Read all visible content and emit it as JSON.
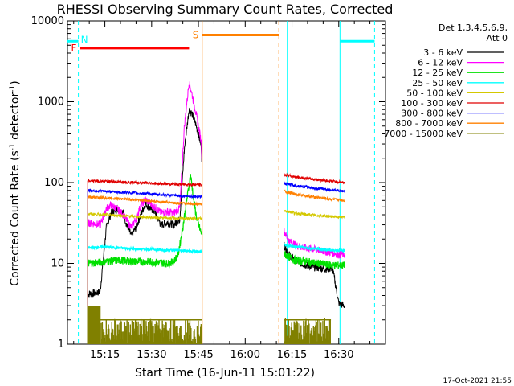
{
  "chart_data": {
    "type": "line",
    "title": "RHESSI Observing Summary Count Rates, Corrected",
    "xlabel": "Start Time (16-Jun-11 15:01:22)",
    "ylabel": "Corrected Count Rate (s⁻¹ detector⁻¹)",
    "ylabel_main": "Corrected Count Rate (s",
    "ylabel_mid": " detector",
    "ylabel_end": ")",
    "ylabel_sup": "-1",
    "y_scale": "log",
    "ylim": [
      1,
      10000
    ],
    "y_ticks": [
      1,
      10,
      100,
      1000,
      10000
    ],
    "y_tick_labels": [
      "1",
      "10",
      "100",
      "1000",
      "10000"
    ],
    "xlim_minutes": [
      15.02,
      16.75
    ],
    "x_ticks_minutes": [
      915,
      930,
      945,
      960,
      975,
      990
    ],
    "x_tick_labels": [
      "15:15",
      "15:30",
      "15:45",
      "16:00",
      "16:15",
      "16:30"
    ],
    "timestamp": "17-Oct-2021 21:55",
    "legend_header": [
      "Det 1,3,4,5,6,9,",
      "Att 0"
    ],
    "legend": [
      {
        "label": "3 - 6 keV",
        "color": "#000000"
      },
      {
        "label": "6 - 12 keV",
        "color": "#ff00ff"
      },
      {
        "label": "12 - 25 keV",
        "color": "#00e000"
      },
      {
        "label": "25 - 50 keV",
        "color": "#00ffff"
      },
      {
        "label": "50 - 100 keV",
        "color": "#d4c800"
      },
      {
        "label": "100 - 300 keV",
        "color": "#e00000"
      },
      {
        "label": "300 - 800 keV",
        "color": "#0000ff"
      },
      {
        "label": "800 - 7000 keV",
        "color": "#ff8000"
      },
      {
        "label": "7000 - 15000 keV",
        "color": "#808000"
      }
    ],
    "flags": [
      {
        "label": "N",
        "color": "#00ffff",
        "note": "night"
      },
      {
        "label": "F",
        "color": "#ff0000",
        "note": "flare"
      },
      {
        "label": "S",
        "color": "#ff8000",
        "note": "SAA"
      }
    ],
    "series": [
      {
        "name": "3 - 6 keV",
        "color": "#000000",
        "x": [
          909.5,
          912,
          913.5,
          915.5,
          917,
          919,
          921,
          922,
          923.5,
          925,
          926.5,
          928,
          929.5,
          931,
          933,
          935,
          937,
          939,
          940.5,
          942,
          943,
          944,
          945,
          945.9,
          946.2,
          972.5,
          974,
          976,
          978,
          980,
          982,
          984,
          986,
          988,
          990,
          992
        ],
        "y": [
          4.2,
          4.3,
          4.5,
          28,
          42,
          48,
          42,
          30,
          22,
          28,
          40,
          55,
          48,
          44,
          30,
          32,
          30,
          35,
          260,
          820,
          700,
          550,
          400,
          280,
          150,
          17,
          13,
          11,
          10,
          9.5,
          9,
          8.8,
          8.5,
          8.8,
          3.2,
          3.0
        ]
      },
      {
        "name": "6 - 12 keV",
        "color": "#ff00ff",
        "x": [
          909.5,
          912,
          913.5,
          915.5,
          917,
          919,
          921,
          922,
          923.5,
          925,
          926.5,
          928,
          929.5,
          931,
          933,
          935,
          937,
          939,
          940.5,
          942,
          943,
          944,
          945,
          945.9,
          946.2,
          972.5,
          974,
          976,
          978,
          980,
          982,
          984,
          986,
          988,
          990,
          992
        ],
        "y": [
          32,
          31,
          30,
          48,
          53,
          47,
          40,
          34,
          28,
          36,
          52,
          62,
          55,
          50,
          42,
          44,
          42,
          48,
          500,
          1750,
          1200,
          800,
          500,
          320,
          170,
          25,
          19,
          17,
          16,
          15.5,
          15,
          14.5,
          14,
          13.5,
          13,
          13
        ]
      },
      {
        "name": "12 - 25 keV",
        "color": "#00e000",
        "x": [
          909.5,
          915,
          920,
          925,
          930,
          935,
          937,
          938.5,
          940,
          941.5,
          942.5,
          943.5,
          944.5,
          946,
          972.5,
          976,
          980,
          984,
          988,
          992
        ],
        "y": [
          10,
          10.5,
          11,
          10.5,
          10.5,
          10,
          10.5,
          13,
          28,
          70,
          125,
          60,
          35,
          23,
          13,
          11,
          10.5,
          10,
          9.5,
          9.5
        ]
      },
      {
        "name": "25 - 50 keV",
        "color": "#00ffff",
        "x": [
          909.5,
          915,
          920,
          925,
          930,
          935,
          940,
          945,
          946.2,
          972.5,
          976,
          980,
          984,
          988,
          992
        ],
        "y": [
          15.5,
          16,
          15.5,
          15,
          15,
          14.5,
          14.5,
          14,
          14,
          17,
          16,
          15.5,
          15,
          14.5,
          14.5
        ]
      },
      {
        "name": "50 - 100 keV",
        "color": "#d4c800",
        "x": [
          909.5,
          915,
          920,
          925,
          930,
          935,
          940,
          946.2,
          972.5,
          976,
          980,
          984,
          988,
          992
        ],
        "y": [
          41,
          40,
          39,
          38,
          37,
          36.5,
          36,
          36,
          45,
          42,
          40,
          39,
          38,
          37
        ]
      },
      {
        "name": "100 - 300 keV",
        "color": "#e00000",
        "x": [
          909.5,
          915,
          920,
          925,
          930,
          935,
          940,
          946.2,
          972.5,
          976,
          980,
          984,
          988,
          992
        ],
        "y": [
          105,
          104,
          102,
          100,
          98,
          96,
          95,
          94,
          125,
          118,
          112,
          108,
          104,
          100
        ]
      },
      {
        "name": "300 - 800 keV",
        "color": "#0000ff",
        "x": [
          909.5,
          915,
          920,
          925,
          930,
          935,
          940,
          946.2,
          972.5,
          976,
          980,
          984,
          988,
          992
        ],
        "y": [
          80,
          78,
          76,
          74,
          72,
          70,
          68,
          67,
          97,
          92,
          88,
          84,
          81,
          78
        ]
      },
      {
        "name": "800 - 7000 keV",
        "color": "#ff8000",
        "x": [
          909.5,
          915,
          920,
          925,
          930,
          935,
          940,
          946.2,
          972.5,
          976,
          980,
          984,
          988,
          992
        ],
        "y": [
          66,
          65,
          63,
          61,
          59,
          57,
          55,
          54,
          78,
          72,
          68,
          65,
          62,
          60
        ]
      },
      {
        "name": "7000 - 15000 keV",
        "color": "#808000",
        "x": [
          909.5,
          913,
          913.5,
          946.2,
          972.5,
          980,
          987.5
        ],
        "y": [
          3,
          3,
          2,
          2,
          2.2,
          2,
          2
        ]
      }
    ]
  }
}
